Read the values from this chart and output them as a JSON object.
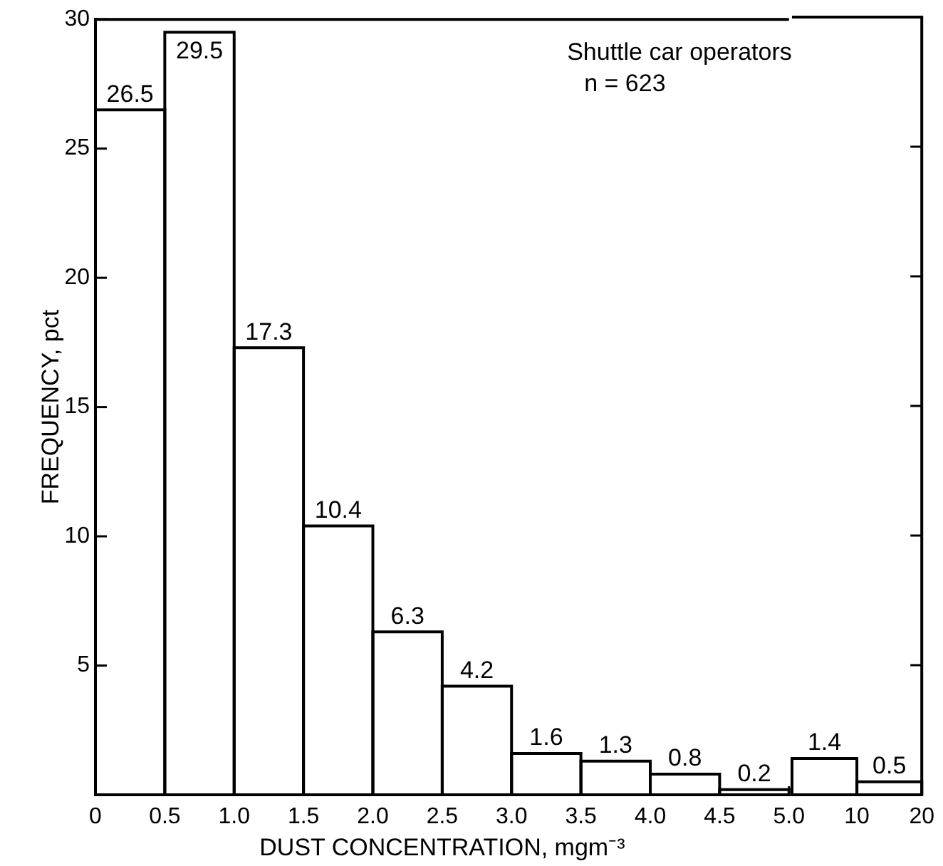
{
  "chart_data": [
    {
      "type": "histogram",
      "xlabel": "DUST CONCENTRATION, mgm⁻³",
      "ylabel": "FREQUENCY, pct",
      "bins": [
        0,
        0.5,
        1,
        1.5,
        2,
        2.5,
        3,
        3.5,
        4,
        4.5,
        5
      ],
      "values": [
        26.5,
        29.5,
        17.3,
        10.4,
        6.3,
        4.2,
        1.6,
        1.3,
        0.8,
        0.2
      ],
      "color": "#000000",
      "grid": false,
      "legend": false,
      "xlim": [
        0,
        5
      ],
      "xticks": [
        0,
        0.5,
        {
          "value": 1,
          "label": "1.0"
        },
        1.5,
        {
          "value": 2,
          "label": "2.0"
        },
        2.5,
        {
          "value": 3,
          "label": "3.0"
        },
        3.5,
        {
          "value": 4,
          "label": "4.0"
        },
        4.5,
        {
          "value": 5,
          "label": "5.0"
        }
      ],
      "ylim": [
        0,
        30
      ],
      "yticks": [
        5,
        10,
        15,
        20,
        25,
        30
      ],
      "data_labels": true,
      "annotations": [
        "Shuttle car operators",
        "n = 623"
      ]
    },
    {
      "type": "histogram",
      "bins": [
        5,
        10,
        20
      ],
      "values": [
        1.4,
        0.5
      ],
      "color": "#000000",
      "log": "x",
      "xlim": [
        5,
        20
      ],
      "xticks": [
        10,
        20
      ],
      "ylim": [
        0,
        30
      ],
      "yticks": [
        5,
        10,
        15,
        20,
        25,
        30
      ],
      "tick_labels": "x",
      "data_labels": true
    }
  ]
}
